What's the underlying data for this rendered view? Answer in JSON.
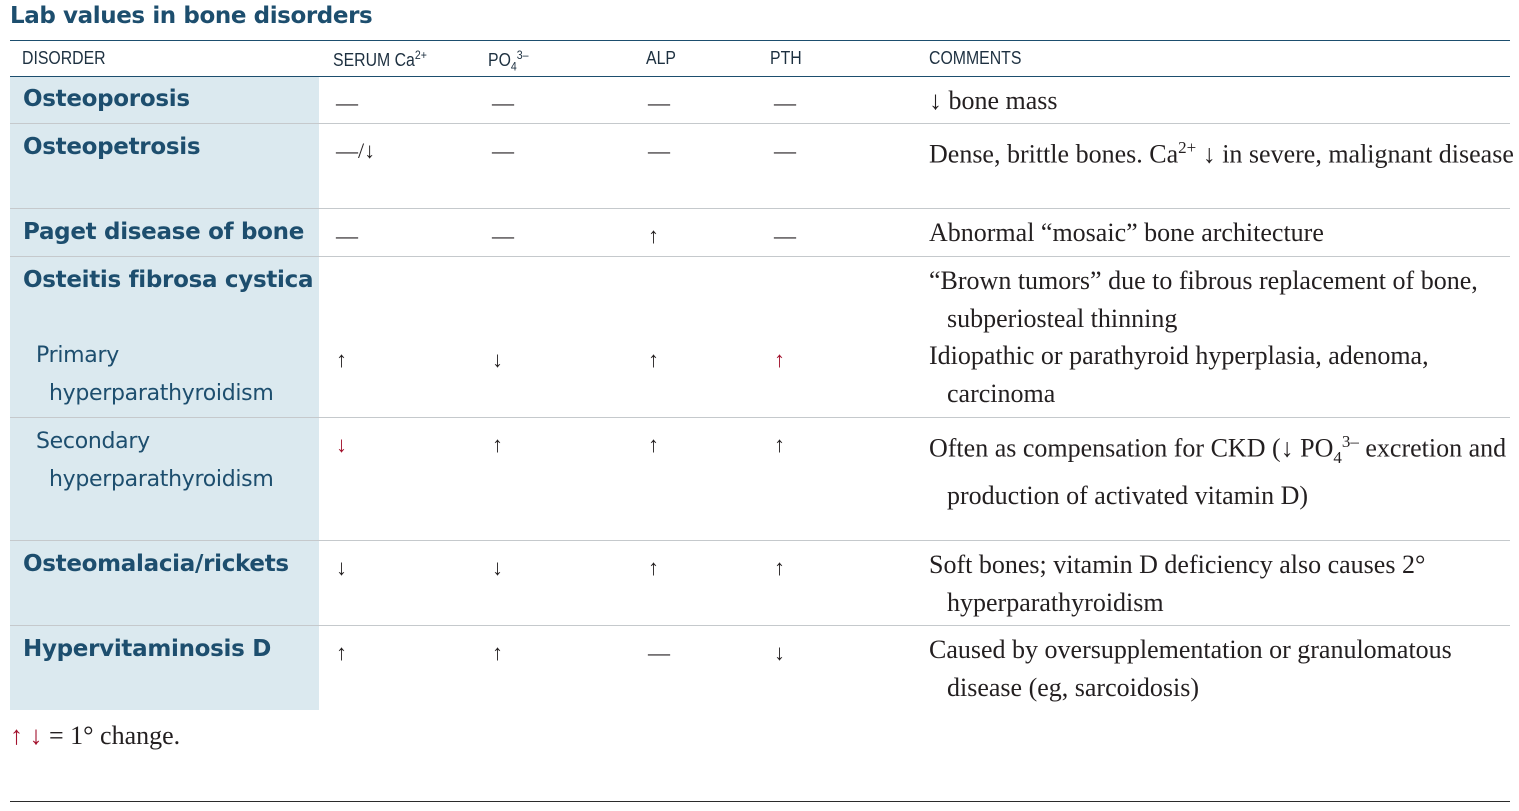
{
  "title": "Lab values in bone disorders",
  "headers": {
    "disorder": "DISORDER",
    "serum_ca_base": "SERUM Ca",
    "serum_ca_sup": "2+",
    "po4_base": "PO",
    "po4_sub": "4",
    "po4_sup": "3–",
    "alp": "ALP",
    "pth": "PTH",
    "comments": "COMMENTS"
  },
  "rows": {
    "osteoporosis": {
      "name": "Osteoporosis",
      "ca": "—",
      "po4": "—",
      "alp": "—",
      "pth": "—",
      "comment": "↓ bone mass"
    },
    "osteopetrosis": {
      "name": "Osteopetrosis",
      "ca": "—/↓",
      "po4": "—",
      "alp": "—",
      "pth": "—",
      "comment_a": "Dense, brittle bones. Ca",
      "comment_sup": "2+",
      "comment_b": " ↓ in severe, malignant disease"
    },
    "paget": {
      "name": "Paget disease of bone",
      "ca": "—",
      "po4": "—",
      "alp": "↑",
      "pth": "—",
      "comment": "Abnormal “mosaic” bone architecture"
    },
    "ofc": {
      "name": "Osteitis fibrosa cystica",
      "comment": "“Brown tumors” due to fibrous replacement of bone, subperiosteal thinning"
    },
    "primary": {
      "name_line1": "Primary",
      "name_line2": "hyperparathyroidism",
      "ca": "↑",
      "po4": "↓",
      "alp": "↑",
      "pth": "↑",
      "comment": "Idiopathic or parathyroid hyperplasia, adenoma, carcinoma"
    },
    "secondary": {
      "name_line1": "Secondary",
      "name_line2": "hyperparathyroidism",
      "ca": "↓",
      "po4": "↑",
      "alp": "↑",
      "pth": "↑",
      "comment_a": "Often as compensation for CKD (↓ PO",
      "comment_sub": "4",
      "comment_sup": "3–",
      "comment_b": " excretion and production of activated vitamin D)"
    },
    "osteomalacia": {
      "name": "Osteomalacia/rickets",
      "ca": "↓",
      "po4": "↓",
      "alp": "↑",
      "pth": "↑",
      "comment": "Soft bones; vitamin D deficiency also causes 2° hyperparathyroidism"
    },
    "hypervitaminosis": {
      "name": "Hypervitaminosis D",
      "ca": "↑",
      "po4": "↑",
      "alp": "—",
      "pth": "↓",
      "comment": "Caused by oversupplementation or granulomatous disease (eg, sarcoidosis)"
    }
  },
  "footnote": {
    "up": "↑",
    "down": "↓",
    "text": " = 1° change."
  },
  "colors": {
    "accent": "#1d4e6e",
    "disorder_bg": "#dbe9ef",
    "primary_change": "#a3122d",
    "text": "#231f20"
  }
}
